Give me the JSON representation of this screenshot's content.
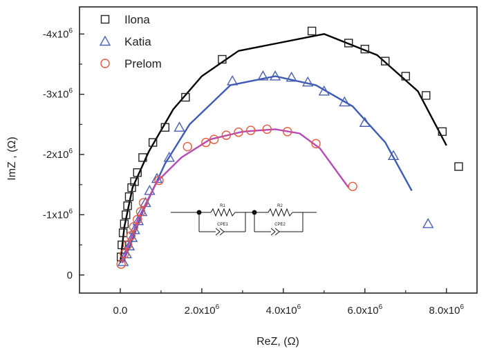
{
  "chart_data": {
    "type": "scatter",
    "title": "",
    "xlabel": "ReZ, (Ω)",
    "ylabel": "ImZ , (Ω)",
    "xlim": [
      -1000000,
      8750000
    ],
    "ylim": [
      300000,
      -4450000
    ],
    "x_ticks": [
      0,
      2000000,
      4000000,
      6000000,
      8000000
    ],
    "y_ticks": [
      0,
      -1000000,
      -2000000,
      -3000000,
      -4000000
    ],
    "x_tick_labels": [
      {
        "base": "0.0",
        "exp": ""
      },
      {
        "base": "2.0x10",
        "exp": "6"
      },
      {
        "base": "4.0x10",
        "exp": "6"
      },
      {
        "base": "6.0x10",
        "exp": "6"
      },
      {
        "base": "8.0x10",
        "exp": "6"
      }
    ],
    "y_tick_labels": [
      {
        "base": "0",
        "exp": ""
      },
      {
        "base": "-1x10",
        "exp": "6"
      },
      {
        "base": "-2x10",
        "exp": "6"
      },
      {
        "base": "-3x10",
        "exp": "6"
      },
      {
        "base": "-4x10",
        "exp": "6"
      }
    ],
    "legend_position": "top-left",
    "grid": false,
    "series": [
      {
        "name": "Ilona",
        "marker": "square",
        "marker_color": "#222222",
        "fit_color": "#000000",
        "points": [
          [
            20000,
            -300000
          ],
          [
            40000,
            -500000
          ],
          [
            70000,
            -700000
          ],
          [
            100000,
            -850000
          ],
          [
            140000,
            -1000000
          ],
          [
            180000,
            -1150000
          ],
          [
            220000,
            -1300000
          ],
          [
            280000,
            -1450000
          ],
          [
            350000,
            -1550000
          ],
          [
            420000,
            -1700000
          ],
          [
            550000,
            -1950000
          ],
          [
            800000,
            -2200000
          ],
          [
            1100000,
            -2450000
          ],
          [
            1600000,
            -2950000
          ],
          [
            2500000,
            -3580000
          ],
          [
            4700000,
            -4050000
          ],
          [
            5600000,
            -3850000
          ],
          [
            6000000,
            -3750000
          ],
          [
            6500000,
            -3550000
          ],
          [
            7000000,
            -3300000
          ],
          [
            7500000,
            -2980000
          ],
          [
            7900000,
            -2380000
          ],
          [
            8300000,
            -1800000
          ]
        ],
        "fit": [
          [
            0,
            -200000
          ],
          [
            100000,
            -800000
          ],
          [
            300000,
            -1450000
          ],
          [
            700000,
            -2050000
          ],
          [
            1300000,
            -2750000
          ],
          [
            2000000,
            -3300000
          ],
          [
            2900000,
            -3720000
          ],
          [
            5000000,
            -4000000
          ],
          [
            6300000,
            -3650000
          ],
          [
            7300000,
            -3050000
          ],
          [
            8000000,
            -2150000
          ]
        ]
      },
      {
        "name": "Katia",
        "marker": "triangle",
        "marker_color": "#4a5fb0",
        "fit_color": "#3b5bb5",
        "points": [
          [
            70000,
            -220000
          ],
          [
            150000,
            -350000
          ],
          [
            220000,
            -480000
          ],
          [
            290000,
            -620000
          ],
          [
            350000,
            -750000
          ],
          [
            440000,
            -900000
          ],
          [
            530000,
            -1050000
          ],
          [
            620000,
            -1200000
          ],
          [
            720000,
            -1400000
          ],
          [
            900000,
            -1600000
          ],
          [
            1200000,
            -1950000
          ],
          [
            1450000,
            -2450000
          ],
          [
            2750000,
            -3220000
          ],
          [
            3500000,
            -3300000
          ],
          [
            3800000,
            -3300000
          ],
          [
            4200000,
            -3280000
          ],
          [
            4600000,
            -3200000
          ],
          [
            5000000,
            -3050000
          ],
          [
            5500000,
            -2870000
          ],
          [
            6000000,
            -2530000
          ],
          [
            6700000,
            -1980000
          ],
          [
            7550000,
            -850000
          ]
        ],
        "fit": [
          [
            50000,
            -200000
          ],
          [
            250000,
            -500000
          ],
          [
            550000,
            -1050000
          ],
          [
            1100000,
            -1850000
          ],
          [
            1700000,
            -2500000
          ],
          [
            2700000,
            -3150000
          ],
          [
            3800000,
            -3300000
          ],
          [
            4800000,
            -3150000
          ],
          [
            5700000,
            -2800000
          ],
          [
            6500000,
            -2200000
          ],
          [
            7150000,
            -1400000
          ]
        ]
      },
      {
        "name": "Prelom",
        "marker": "circle",
        "marker_color": "#e4573a",
        "fit_color": "#b54ab5",
        "points": [
          [
            20000,
            -180000
          ],
          [
            100000,
            -350000
          ],
          [
            180000,
            -500000
          ],
          [
            260000,
            -650000
          ],
          [
            330000,
            -800000
          ],
          [
            420000,
            -920000
          ],
          [
            500000,
            -1050000
          ],
          [
            570000,
            -1200000
          ],
          [
            950000,
            -1570000
          ],
          [
            1650000,
            -2130000
          ],
          [
            2100000,
            -2200000
          ],
          [
            2300000,
            -2250000
          ],
          [
            2600000,
            -2320000
          ],
          [
            2900000,
            -2370000
          ],
          [
            3200000,
            -2400000
          ],
          [
            3600000,
            -2420000
          ],
          [
            4100000,
            -2380000
          ],
          [
            4800000,
            -2180000
          ],
          [
            5700000,
            -1470000
          ]
        ],
        "fit": [
          [
            50000,
            -200000
          ],
          [
            200000,
            -500000
          ],
          [
            450000,
            -950000
          ],
          [
            900000,
            -1550000
          ],
          [
            1500000,
            -1950000
          ],
          [
            2200000,
            -2250000
          ],
          [
            3000000,
            -2380000
          ],
          [
            3800000,
            -2420000
          ],
          [
            4400000,
            -2350000
          ],
          [
            4900000,
            -2100000
          ],
          [
            5600000,
            -1450000
          ]
        ]
      }
    ]
  },
  "circuit": {
    "r1": "R1",
    "cpe1": "CPE1",
    "r2": "R2",
    "cpe2": "CPE2"
  }
}
